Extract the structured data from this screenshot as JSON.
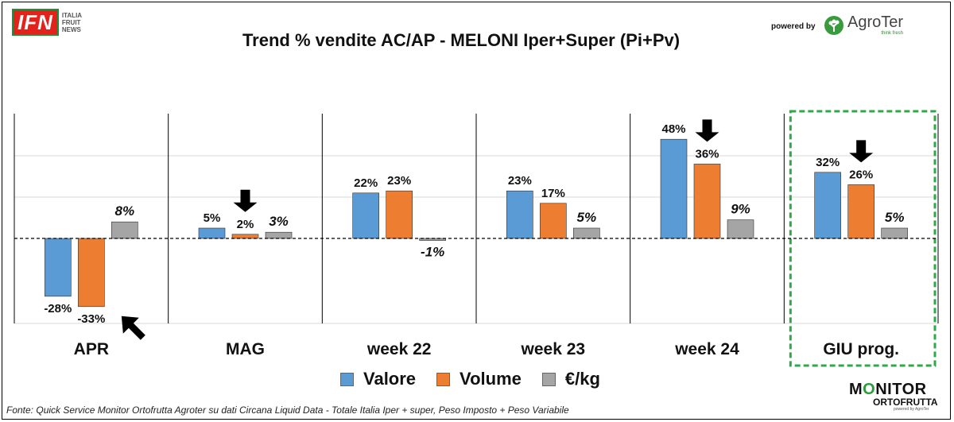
{
  "header": {
    "logo_mark": "IFN",
    "logo_sub": [
      "ITALIA",
      "FRUIT",
      "NEWS"
    ],
    "powered_by": "powered by",
    "agroter": "AgroTer",
    "agroter_tagline": "think fresh"
  },
  "chart_data": {
    "type": "bar",
    "title": "Trend % vendite AC/AP - MELONI  Iper+Super (Pi+Pv)",
    "categories": [
      "APR",
      "MAG",
      "week 22",
      "week 23",
      "week 24",
      "GIU prog."
    ],
    "series": [
      {
        "name": "Valore",
        "color": "#5b9bd5",
        "values": [
          -28,
          5,
          22,
          23,
          48,
          32
        ],
        "labels": [
          "-28%",
          "5%",
          "22%",
          "23%",
          "48%",
          "32%"
        ]
      },
      {
        "name": "Volume",
        "color": "#ed7d31",
        "values": [
          -33,
          2,
          23,
          17,
          36,
          26
        ],
        "labels": [
          "-33%",
          "2%",
          "23%",
          "17%",
          "36%",
          "26%"
        ]
      },
      {
        "name": "€/kg",
        "color": "#a5a5a5",
        "values": [
          8,
          3,
          -1,
          5,
          9,
          5
        ],
        "labels": [
          "8%",
          "3%",
          "-1%",
          "5%",
          "9%",
          "5%"
        ]
      }
    ],
    "ylim": [
      -41,
      60
    ],
    "gridlines": [
      20,
      40
    ],
    "highlighted_category": "GIU prog.",
    "annotations": [
      {
        "category": "MAG",
        "series": "Volume",
        "direction": "down"
      },
      {
        "category": "week 24",
        "series": "Volume",
        "direction": "down"
      },
      {
        "category": "GIU prog.",
        "series": "Volume",
        "direction": "down"
      },
      {
        "category": "APR",
        "series": "Volume",
        "direction": "up-left"
      }
    ]
  },
  "footer": {
    "source": "Fonte: Quick Service Monitor Ortofrutta Agroter su dati Circana Liquid Data - Totale Italia Iper + super, Peso Imposto + Peso Variabile"
  },
  "monitor_logo": {
    "main_1": "M",
    "main_o": "O",
    "main_2": "NITOR",
    "sub": "ORTOFRUTTA",
    "powered": "powered by AgroTer"
  },
  "colors": {
    "valore": "#5b9bd5",
    "volume": "#ed7d31",
    "prezzo": "#a5a5a5",
    "highlight_border": "#2ea84a"
  }
}
